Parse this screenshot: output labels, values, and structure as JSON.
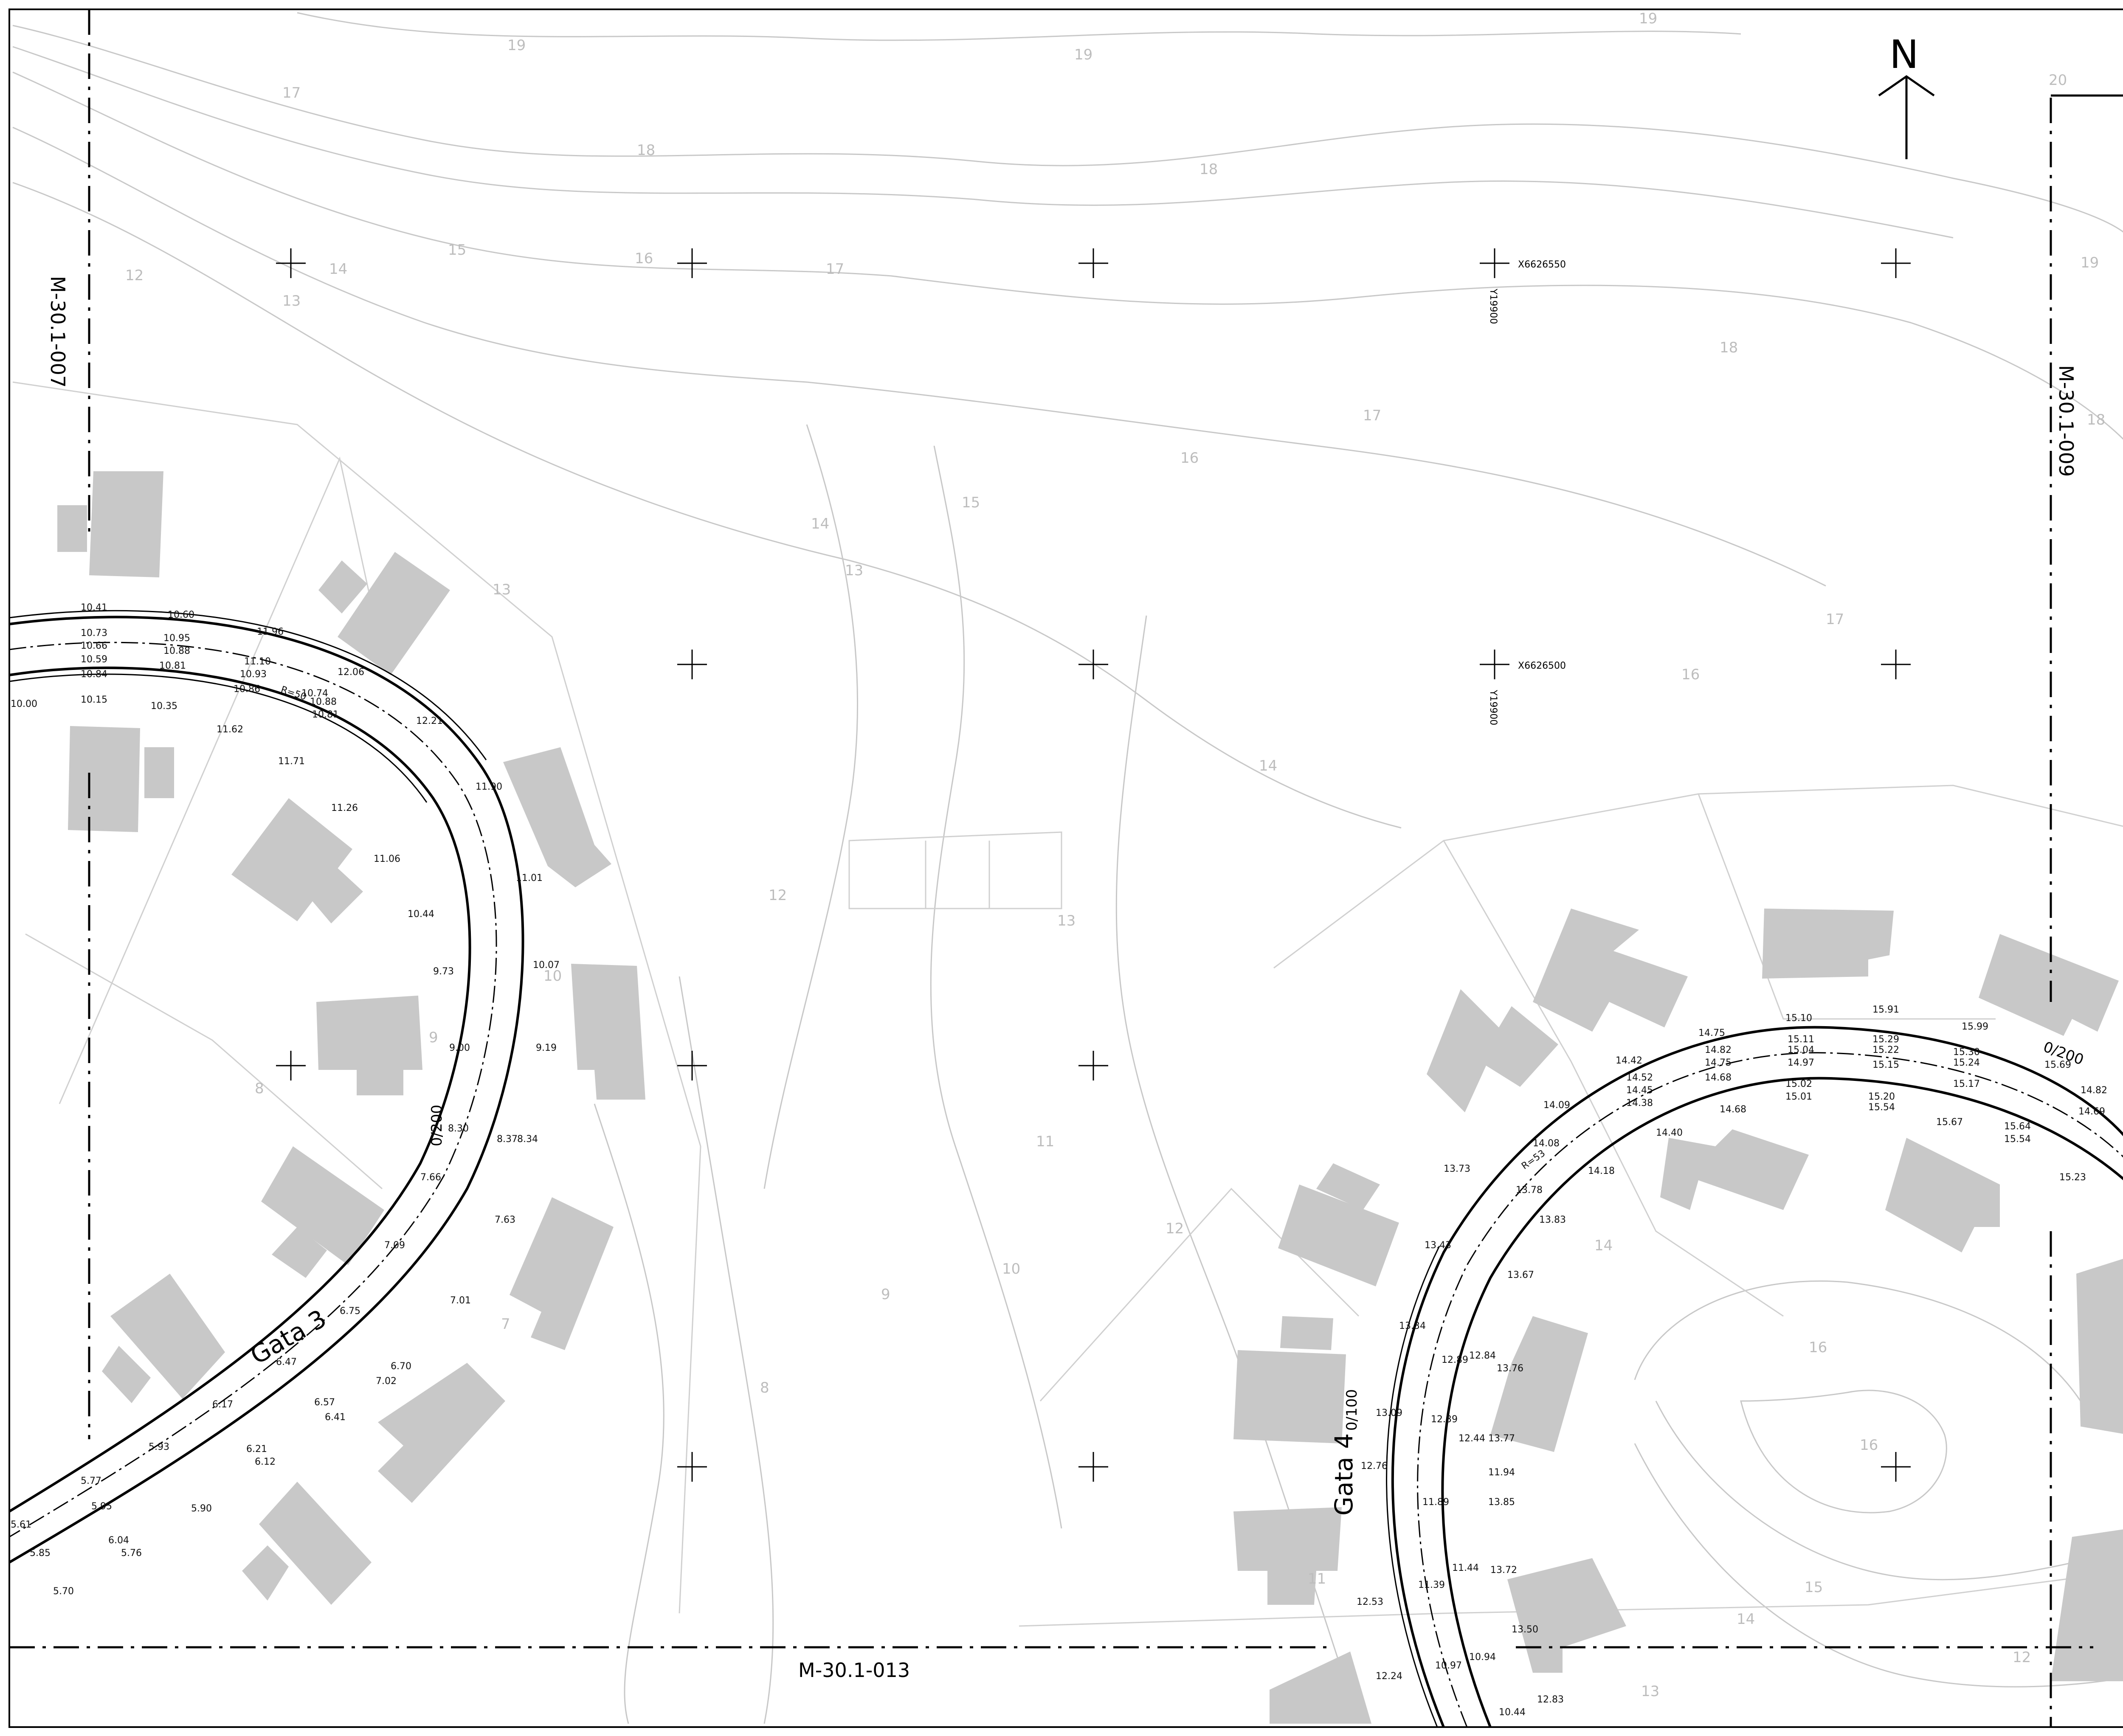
{
  "sheet": {
    "north_label": "N",
    "adjacent_sheets": {
      "left": "M-30.1-007",
      "right": "M-30.1-009",
      "bottom": "M-30.1-013"
    }
  },
  "grid": {
    "coord_labels": [
      {
        "x_label": "X6626550",
        "y_label": "Y19900"
      },
      {
        "x_label": "X6626500",
        "y_label": "Y19900"
      }
    ]
  },
  "streets": [
    {
      "name": "Gata 3",
      "station": "0/200",
      "radius_label": "R=50"
    },
    {
      "name": "Gata 4",
      "stations": [
        "0/100",
        "0/200"
      ],
      "radius_label": "R=53"
    }
  ],
  "contour_labels": [
    "19",
    "19",
    "19",
    "17",
    "18",
    "18",
    "15",
    "16",
    "17",
    "14",
    "12",
    "13",
    "18",
    "17",
    "16",
    "15",
    "14",
    "13",
    "13",
    "12",
    "13",
    "14",
    "16",
    "17",
    "11",
    "10",
    "9",
    "8",
    "7",
    "8",
    "9",
    "10",
    "11",
    "12",
    "14",
    "16",
    "16",
    "15",
    "14",
    "13",
    "12",
    "20",
    "19",
    "18"
  ],
  "elevations_left": [
    "10.41",
    "10.60",
    "10.73",
    "10.95",
    "10.66",
    "10.88",
    "10.59",
    "10.81",
    "10.84",
    "10.15",
    "10.35",
    "10.00",
    "11.96",
    "11.10",
    "10.93",
    "10.86",
    "10.74",
    "11.62",
    "11.71",
    "12.06",
    "10.88",
    "10.81",
    "12.21",
    "11.26",
    "11.06",
    "10.44",
    "9.73",
    "11.90",
    "11.01",
    "10.07",
    "9.19",
    "9.00",
    "8.30",
    "8.34",
    "8.37",
    "7.66",
    "7.63",
    "7.09",
    "7.01",
    "6.75",
    "6.47",
    "6.70",
    "7.02",
    "6.41",
    "6.57",
    "6.17",
    "6.12",
    "6.21",
    "5.93",
    "5.77",
    "5.90",
    "5.76",
    "5.70",
    "5.61",
    "5.85",
    "6.04",
    "5.95"
  ],
  "elevations_right": [
    "15.10",
    "15.91",
    "15.99",
    "15.69",
    "14.75",
    "15.29",
    "15.22",
    "15.30",
    "14.42",
    "14.82",
    "15.11",
    "15.04",
    "15.24",
    "14.09",
    "14.52",
    "14.75",
    "14.97",
    "15.15",
    "15.17",
    "13.73",
    "14.45",
    "14.68",
    "14.38",
    "15.02",
    "15.01",
    "14.82",
    "14.69",
    "14.40",
    "14.68",
    "15.20",
    "15.54",
    "15.67",
    "15.64",
    "15.54",
    "15.23",
    "14.18",
    "14.08",
    "13.78",
    "13.83",
    "13.43",
    "13.67",
    "13.34",
    "12.89",
    "12.84",
    "13.76",
    "13.09",
    "13.77",
    "12.76",
    "12.39",
    "12.44",
    "11.89",
    "13.85",
    "11.94",
    "12.53",
    "11.39",
    "11.44",
    "13.72",
    "12.24",
    "10.97",
    "10.94",
    "13.50",
    "12.83",
    "10.44"
  ]
}
